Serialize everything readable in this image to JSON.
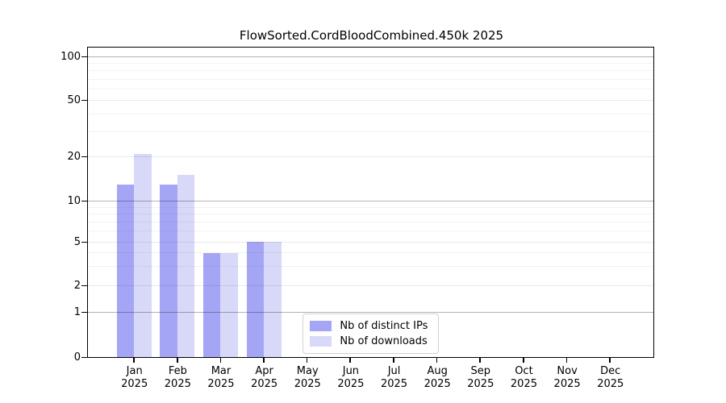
{
  "figure": {
    "background": "#ffffff"
  },
  "chart_data": {
    "type": "bar",
    "title": "FlowSorted.CordBloodCombined.450k 2025",
    "categories": [
      "Jan",
      "Feb",
      "Mar",
      "Apr",
      "May",
      "Jun",
      "Jul",
      "Aug",
      "Sep",
      "Oct",
      "Nov",
      "Dec"
    ],
    "x_sub_label": "2025",
    "series": [
      {
        "name": "Nb of distinct IPs",
        "color": "#a5a5f5",
        "values": [
          13,
          13,
          4,
          5,
          0,
          0,
          0,
          0,
          0,
          0,
          0,
          0
        ]
      },
      {
        "name": "Nb of downloads",
        "color": "#d8d8f9",
        "values": [
          21,
          15,
          4,
          5,
          0,
          0,
          0,
          0,
          0,
          0,
          0,
          0
        ]
      }
    ],
    "y_axis": {
      "scale": "log-like",
      "ticks": [
        0,
        1,
        2,
        5,
        10,
        20,
        50,
        100
      ],
      "major_gridlines": [
        1,
        10,
        100
      ],
      "submajor_gridlines": [
        2,
        5,
        20,
        50
      ],
      "minor_gridlines": [
        3,
        4,
        6,
        7,
        8,
        9,
        30,
        40,
        60,
        70,
        80,
        90
      ],
      "range": [
        0,
        100
      ]
    },
    "legend": {
      "position": "inside-bottom-center"
    },
    "grid": true
  }
}
